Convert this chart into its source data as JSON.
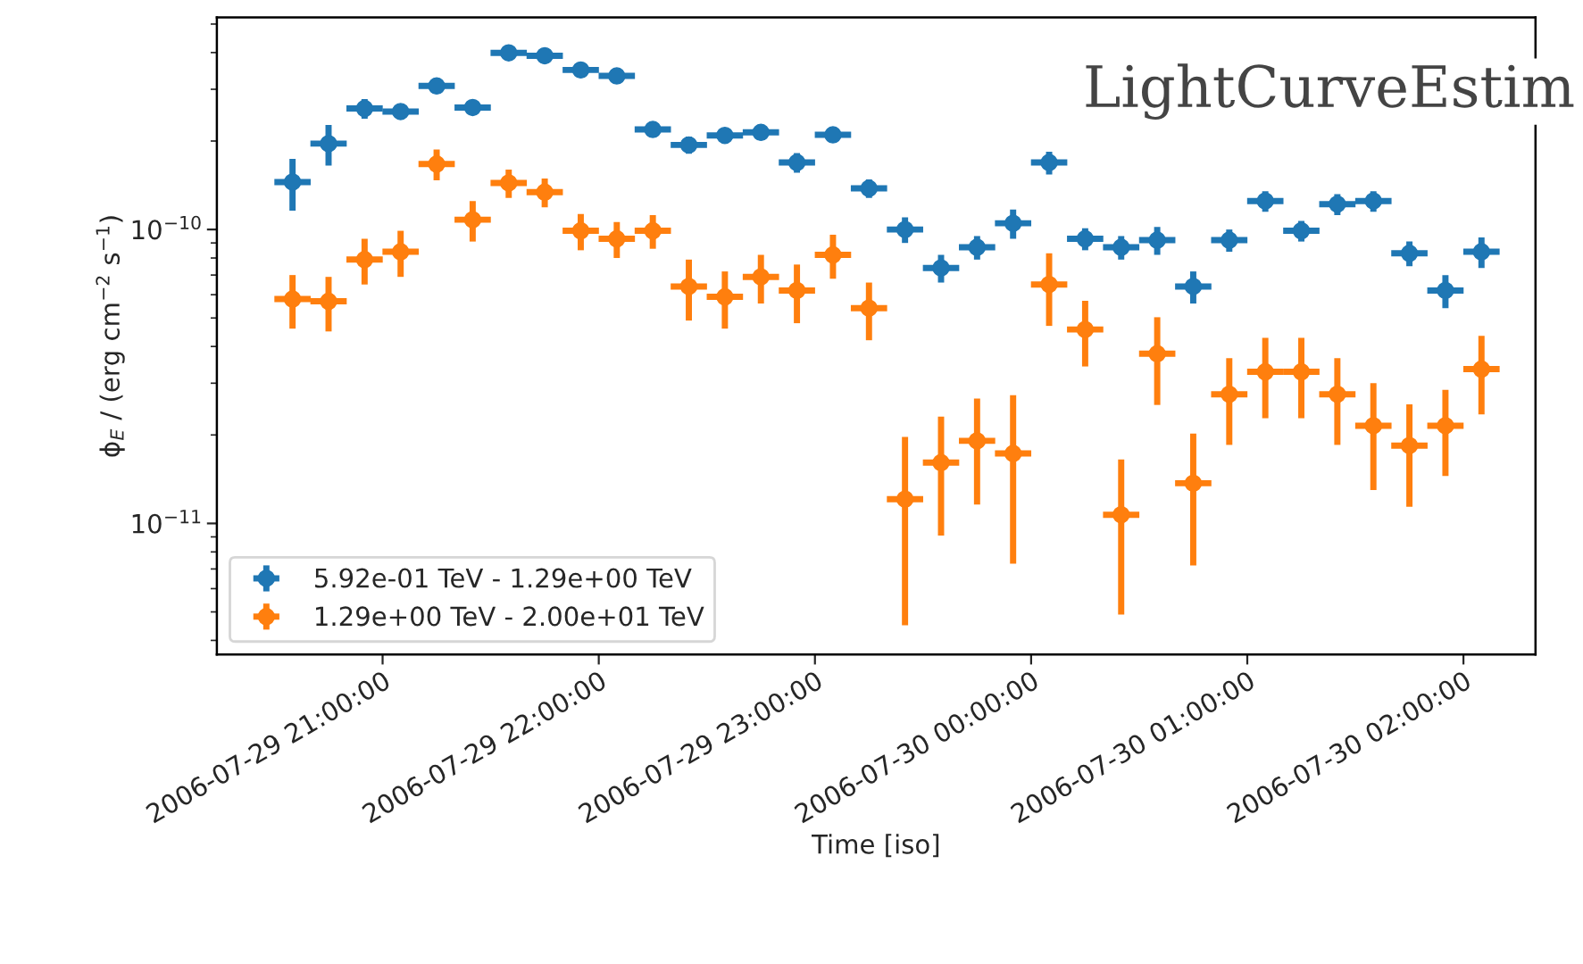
{
  "chart_data": {
    "type": "scatter",
    "xlabel": "Time [iso]",
    "ylabel": "ϕ$_{E}$ / (erg cm$^{−2}$ s$^{−1}$)",
    "annotations": [
      "LightCurveEstim"
    ],
    "x": [
      "2006-07-29T20:35",
      "2006-07-29T20:45",
      "2006-07-29T20:55",
      "2006-07-29T21:05",
      "2006-07-29T21:15",
      "2006-07-29T21:25",
      "2006-07-29T21:35",
      "2006-07-29T21:45",
      "2006-07-29T21:55",
      "2006-07-29T22:05",
      "2006-07-29T22:15",
      "2006-07-29T22:25",
      "2006-07-29T22:35",
      "2006-07-29T22:45",
      "2006-07-29T22:55",
      "2006-07-29T23:05",
      "2006-07-29T23:15",
      "2006-07-29T23:25",
      "2006-07-29T23:35",
      "2006-07-29T23:45",
      "2006-07-29T23:55",
      "2006-07-30T00:05",
      "2006-07-30T00:15",
      "2006-07-30T00:25",
      "2006-07-30T00:35",
      "2006-07-30T00:45",
      "2006-07-30T00:55",
      "2006-07-30T01:05",
      "2006-07-30T01:15",
      "2006-07-30T01:25",
      "2006-07-30T01:35",
      "2006-07-30T01:45",
      "2006-07-30T01:55",
      "2006-07-30T02:05"
    ],
    "series": [
      {
        "name": "5.92e-01 TeV - 1.29e+00 TeV",
        "color": "#1f77b4",
        "values": [
          1.45e-10,
          1.96e-10,
          2.58e-10,
          2.52e-10,
          3.08e-10,
          2.6e-10,
          3.99e-10,
          3.9e-10,
          3.49e-10,
          3.33e-10,
          2.19e-10,
          1.94e-10,
          2.09e-10,
          2.14e-10,
          1.69e-10,
          2.1e-10,
          1.38e-10,
          1e-10,
          7.4e-11,
          8.7e-11,
          1.05e-10,
          1.69e-10,
          9.3e-11,
          8.7e-11,
          9.2e-11,
          6.4e-11,
          9.2e-11,
          1.25e-10,
          9.9e-11,
          1.22e-10,
          1.25e-10,
          8.3e-11,
          6.2e-11,
          8.4e-11
        ],
        "errors": [
          2.9e-11,
          3.1e-11,
          2e-11,
          1.5e-11,
          1.8e-11,
          1.5e-11,
          2e-11,
          2e-11,
          1.8e-11,
          1.7e-11,
          1.3e-11,
          1.3e-11,
          1.2e-11,
          1.2e-11,
          1.3e-11,
          1.2e-11,
          1e-11,
          1e-11,
          8e-12,
          8e-12,
          1.2e-11,
          1.5e-11,
          8e-12,
          8e-12,
          1e-11,
          8e-12,
          8e-12,
          1e-11,
          8e-12,
          1e-11,
          1e-11,
          8e-12,
          8e-12,
          1e-11
        ],
        "xerrors": [
          0.0035,
          0.0035,
          0.0035,
          0.0035,
          0.0035,
          0.0035,
          0.0035,
          0.0035,
          0.0035,
          0.0035,
          0.0035,
          0.0035,
          0.0035,
          0.0035,
          0.0035,
          0.0035,
          0.0035,
          0.0035,
          0.0035,
          0.0035,
          0.0035,
          0.0035,
          0.0035,
          0.0035,
          0.0035,
          0.0035,
          0.0035,
          0.0035,
          0.0035,
          0.0035,
          0.0035,
          0.0035,
          0.0035,
          0.0035
        ]
      },
      {
        "name": "1.29e+00 TeV - 2.00e+01 TeV",
        "color": "#ff7f0e",
        "values": [
          5.8e-11,
          5.7e-11,
          7.9e-11,
          8.4e-11,
          1.67e-10,
          1.08e-10,
          1.44e-10,
          1.34e-10,
          9.9e-11,
          9.3e-11,
          9.9e-11,
          6.4e-11,
          5.9e-11,
          6.9e-11,
          6.2e-11,
          8.2e-11,
          5.4e-11,
          1.21e-11,
          1.61e-11,
          1.91e-11,
          1.73e-11,
          6.5e-11,
          4.57e-11,
          1.07e-11,
          3.78e-11,
          1.37e-11,
          2.75e-11,
          3.28e-11,
          3.28e-11,
          2.75e-11,
          2.15e-11,
          1.84e-11,
          2.15e-11,
          3.35e-11
        ],
        "errors": [
          1.2e-11,
          1.2e-11,
          1.4e-11,
          1.5e-11,
          2e-11,
          1.7e-11,
          1.6e-11,
          1.5e-11,
          1.4e-11,
          1.3e-11,
          1.3e-11,
          1.5e-11,
          1.3e-11,
          1.3e-11,
          1.4e-11,
          1.4e-11,
          1.2e-11,
          7.6e-12,
          7e-12,
          7.5e-12,
          1e-11,
          1.8e-11,
          1.15e-11,
          5.8e-12,
          1.25e-11,
          6.5e-12,
          9e-12,
          1e-11,
          1e-11,
          9e-12,
          8.5e-12,
          7e-12,
          7e-12,
          1e-11
        ],
        "xerrors": [
          0.0035,
          0.0035,
          0.0035,
          0.0035,
          0.0035,
          0.0035,
          0.0035,
          0.0035,
          0.0035,
          0.0035,
          0.0035,
          0.0035,
          0.0035,
          0.0035,
          0.0035,
          0.0035,
          0.0035,
          0.0035,
          0.0035,
          0.0035,
          0.0035,
          0.0035,
          0.0035,
          0.0035,
          0.0035,
          0.0035,
          0.0035,
          0.0035,
          0.0035,
          0.0035,
          0.0035,
          0.0035,
          0.0035,
          0.0035
        ]
      }
    ],
    "xlim": [
      "2006-07-29T20:14",
      "2006-07-30T02:20"
    ],
    "xticks": [
      {
        "value": "2006-07-29T21:00",
        "label": "2006-07-29 21:00:00"
      },
      {
        "value": "2006-07-29T22:00",
        "label": "2006-07-29 22:00:00"
      },
      {
        "value": "2006-07-29T23:00",
        "label": "2006-07-29 23:00:00"
      },
      {
        "value": "2006-07-30T00:00",
        "label": "2006-07-30 00:00:00"
      },
      {
        "value": "2006-07-30T01:00",
        "label": "2006-07-30 01:00:00"
      },
      {
        "value": "2006-07-30T02:00",
        "label": "2006-07-30 02:00:00"
      }
    ],
    "log": "y",
    "ylim": [
      3.58e-12,
      5.27e-10
    ],
    "yticks": [
      {
        "value": 1e-11,
        "label": "10$^{−11}$"
      },
      {
        "value": 1e-10,
        "label": "10$^{−10}$"
      }
    ],
    "marker": "circle",
    "legend": "bottom left",
    "grid": false
  }
}
